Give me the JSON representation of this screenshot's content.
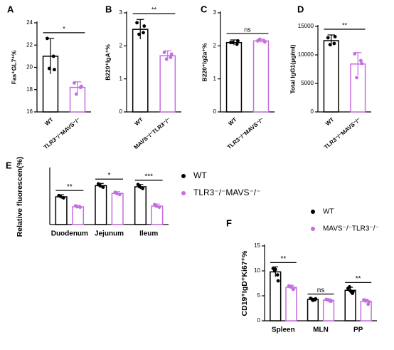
{
  "chart_data": [
    {
      "type": "bar",
      "label": "A",
      "ylabel": "Fas⁺GL7⁺%",
      "categories": [
        "WT",
        "TLR3⁻/⁻MAVS⁻/⁻"
      ],
      "colors": [
        "#000000",
        "#c46ee0"
      ],
      "values": [
        21.0,
        18.2
      ],
      "errors": [
        1.6,
        0.5
      ],
      "points": [
        [
          22.6,
          21.0,
          19.9,
          19.8
        ],
        [
          18.6,
          18.2,
          17.6,
          18.3
        ]
      ],
      "ylim": [
        16,
        24
      ],
      "yticks": [
        16,
        18,
        20,
        22,
        24
      ],
      "annotation": "*"
    },
    {
      "type": "bar",
      "label": "B",
      "ylabel": "B220⁺IgA⁺%",
      "categories": [
        "WT",
        "MAVS⁻/⁻TLR3⁻/⁻"
      ],
      "colors": [
        "#000000",
        "#c46ee0"
      ],
      "values": [
        2.5,
        1.7
      ],
      "errors": [
        0.3,
        0.15
      ],
      "points": [
        [
          2.7,
          2.4,
          2.35,
          2.6
        ],
        [
          1.8,
          1.65,
          1.6,
          1.75
        ]
      ],
      "ylim": [
        0,
        3
      ],
      "yticks": [
        0,
        1,
        2,
        3
      ],
      "annotation": "**"
    },
    {
      "type": "bar",
      "label": "C",
      "ylabel": "B220⁺Ig2a⁺%",
      "categories": [
        "WT",
        "TLR3⁻/⁻MAVS⁻/⁻"
      ],
      "colors": [
        "#000000",
        "#c46ee0"
      ],
      "values": [
        2.1,
        2.15
      ],
      "errors": [
        0.08,
        0.05
      ],
      "points": [
        [
          2.1,
          2.05,
          2.1,
          2.15
        ],
        [
          2.15,
          2.15,
          2.2,
          2.12
        ]
      ],
      "ylim": [
        0,
        3
      ],
      "yticks": [
        0,
        1,
        2,
        3
      ],
      "annotation": "ns"
    },
    {
      "type": "bar",
      "label": "D",
      "ylabel": "Total IgG1(μg/ml)",
      "categories": [
        "WT",
        "TLR3⁻/⁻MAVS⁻/⁻"
      ],
      "colors": [
        "#000000",
        "#c46ee0"
      ],
      "values": [
        12500,
        8400
      ],
      "errors": [
        1000,
        2000
      ],
      "points": [
        [
          13000,
          12000,
          11800,
          13200
        ],
        [
          10200,
          9000,
          6000,
          8500
        ]
      ],
      "ylim": [
        0,
        15000
      ],
      "yticks": [
        0,
        5000,
        10000,
        15000
      ],
      "annotation": "**"
    },
    {
      "type": "grouped-bar",
      "label": "E",
      "ylabel": "Relative fluorescen(%)",
      "categories": [
        "Duodenum",
        "Jejunum",
        "Ileum"
      ],
      "series": [
        {
          "name": "WT",
          "color": "#000000",
          "values": [
            125,
            175,
            170
          ],
          "errors": [
            9,
            10,
            10
          ],
          "points": [
            [
              130,
              120,
              127
            ],
            [
              183,
              168,
              175
            ],
            [
              180,
              162,
              170
            ]
          ]
        },
        {
          "name": "TLR3⁻/⁻MAVS⁻/⁻",
          "color": "#c46ee0",
          "values": [
            80,
            140,
            83
          ],
          "errors": [
            6,
            8,
            9
          ],
          "points": [
            [
              84,
              78,
              80
            ],
            [
              145,
              135,
              140
            ],
            [
              90,
              78,
              83
            ]
          ]
        }
      ],
      "ylim": [
        0,
        250
      ],
      "annotations": [
        "**",
        "*",
        "***"
      ]
    },
    {
      "type": "grouped-bar",
      "label": "F",
      "ylabel": "CD19⁺IgD⁺Ki67⁺%",
      "categories": [
        "Spleen",
        "MLN",
        "PP"
      ],
      "series": [
        {
          "name": "WT",
          "color": "#000000",
          "values": [
            9.8,
            4.3,
            6.1
          ],
          "errors": [
            1.0,
            0.2,
            0.6
          ],
          "points": [
            [
              10.5,
              9.2,
              10.0,
              8.0,
              10.3
            ],
            [
              4.5,
              4.2,
              4.3,
              4.4,
              4.1
            ],
            [
              6.5,
              5.5,
              6.8,
              5.8,
              6.0
            ]
          ]
        },
        {
          "name": "MAVS⁻/⁻TLR3⁻/⁻",
          "color": "#c46ee0",
          "values": [
            6.7,
            4.1,
            3.9
          ],
          "errors": [
            0.4,
            0.3,
            0.4
          ],
          "points": [
            [
              7.0,
              6.3,
              6.8,
              6.5,
              6.9
            ],
            [
              4.3,
              3.9,
              4.2,
              4.0,
              4.1
            ],
            [
              4.2,
              3.3,
              4.0,
              3.8,
              4.1
            ]
          ]
        }
      ],
      "ylim": [
        0,
        15
      ],
      "yticks": [
        0,
        5,
        10,
        15
      ],
      "annotations": [
        "**",
        "ns",
        "**"
      ]
    }
  ]
}
